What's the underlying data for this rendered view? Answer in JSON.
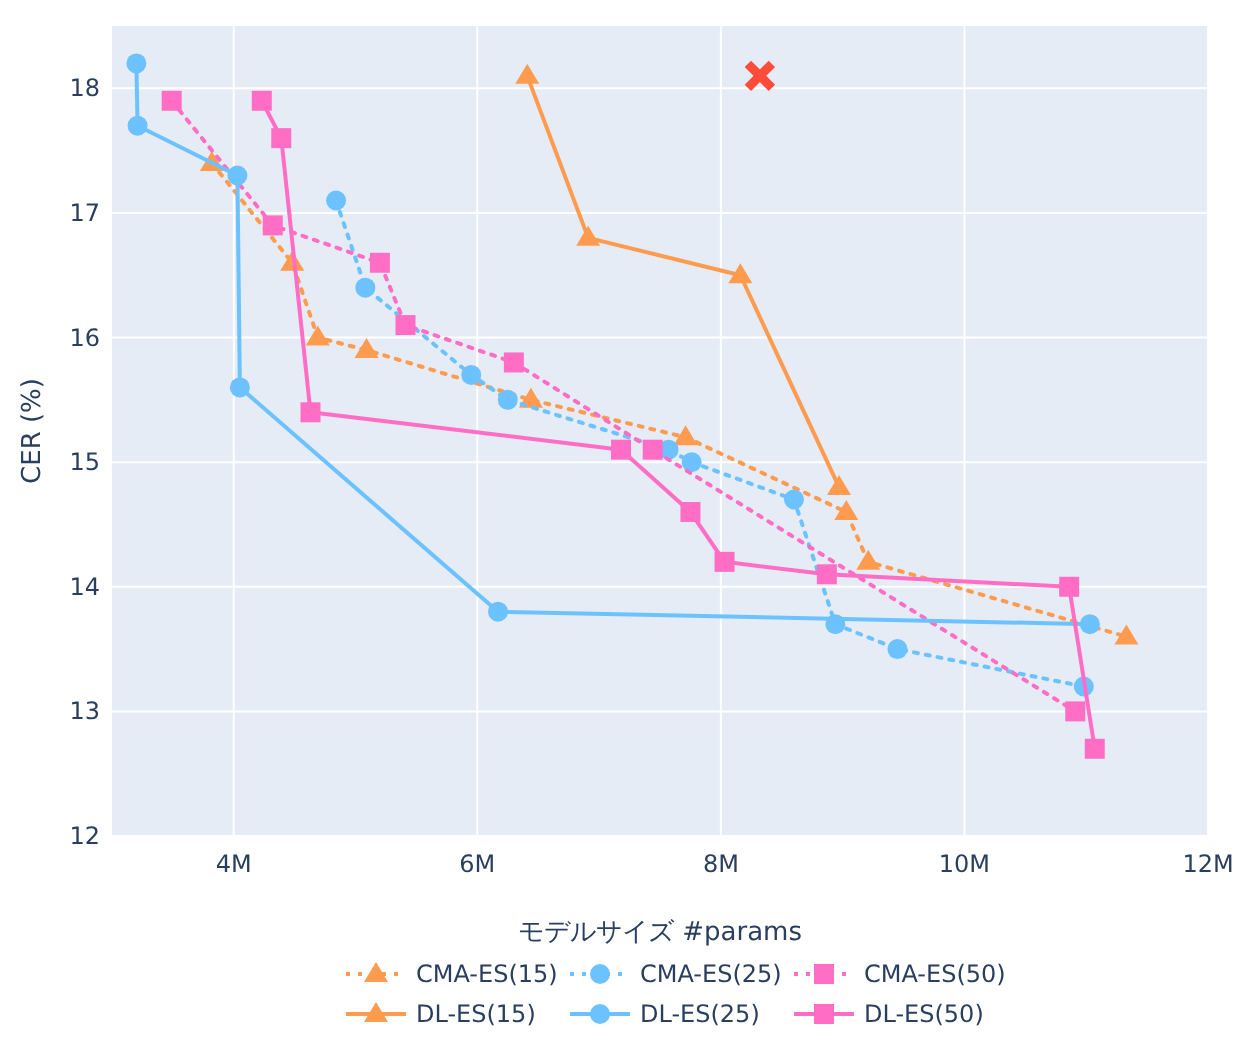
{
  "chart_data": {
    "type": "line",
    "xlabel": "モデルサイズ #params",
    "ylabel": "CER (%)",
    "xlim": [
      3000000,
      12000000
    ],
    "xticks": [
      {
        "value": 4000000,
        "label": "4M"
      },
      {
        "value": 6000000,
        "label": "6M"
      },
      {
        "value": 8000000,
        "label": "8M"
      },
      {
        "value": 10000000,
        "label": "10M"
      },
      {
        "value": 12000000,
        "label": "12M"
      }
    ],
    "ylim": [
      12,
      18.5
    ],
    "yticks": [
      12,
      13,
      14,
      15,
      16,
      17,
      18
    ],
    "grid": true,
    "legend": "bottom",
    "series": [
      {
        "name": "CMA-ES(15)",
        "color": "#ff9b4f",
        "marker": "triangle",
        "line_style": "dotted",
        "x": [
          3820000,
          4480000,
          4690000,
          5090000,
          6440000,
          7710000,
          9030000,
          9210000,
          11330000
        ],
        "values": [
          17.4,
          16.6,
          16.0,
          15.9,
          15.5,
          15.2,
          14.6,
          14.2,
          13.6
        ]
      },
      {
        "name": "CMA-ES(25)",
        "color": "#6cc2ff",
        "marker": "circle",
        "line_style": "dotted",
        "x": [
          4840000,
          5080000,
          5950000,
          6250000,
          7570000,
          7760000,
          8600000,
          8940000,
          9450000,
          10980000
        ],
        "values": [
          17.1,
          16.4,
          15.7,
          15.5,
          15.1,
          15.0,
          14.7,
          13.7,
          13.5,
          13.2
        ]
      },
      {
        "name": "CMA-ES(50)",
        "color": "#ff6ec4",
        "marker": "square",
        "line_style": "dotted",
        "x": [
          3490000,
          4320000,
          5200000,
          5410000,
          6300000,
          7440000,
          10910000
        ],
        "values": [
          17.9,
          16.9,
          16.6,
          16.1,
          15.8,
          15.1,
          13.0
        ]
      },
      {
        "name": "DL-ES(15)",
        "color": "#ff9b4f",
        "marker": "triangle",
        "line_style": "solid",
        "x": [
          6410000,
          6910000,
          8160000,
          8970000
        ],
        "values": [
          18.1,
          16.8,
          16.5,
          14.8
        ]
      },
      {
        "name": "DL-ES(25)",
        "color": "#6cc2ff",
        "marker": "circle",
        "line_style": "solid",
        "x": [
          3200000,
          3210000,
          4030000,
          4050000,
          6170000,
          11030000
        ],
        "values": [
          18.2,
          17.7,
          17.3,
          15.6,
          13.8,
          13.7
        ]
      },
      {
        "name": "DL-ES(50)",
        "color": "#ff6ec4",
        "marker": "square",
        "line_style": "solid",
        "x": [
          4230000,
          4390000,
          4630000,
          7180000,
          7750000,
          8030000,
          8870000,
          10860000,
          11070000
        ],
        "values": [
          17.9,
          17.6,
          15.4,
          15.1,
          14.6,
          14.2,
          14.1,
          14.0,
          12.7
        ]
      },
      {
        "type": "scatter",
        "color": "#ff4b3a",
        "marker": "cross",
        "x": [
          8320000
        ],
        "values": [
          18.1
        ]
      }
    ]
  }
}
